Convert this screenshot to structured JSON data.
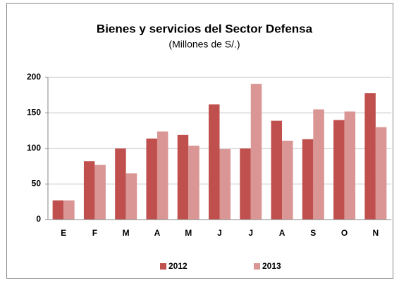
{
  "chart_data": {
    "type": "bar",
    "title": "Bienes y servicios del Sector Defensa",
    "subtitle": "(Millones de S/.)",
    "categories": [
      "E",
      "F",
      "M",
      "A",
      "M",
      "J",
      "J",
      "A",
      "S",
      "O",
      "N"
    ],
    "series": [
      {
        "name": "2012",
        "color": "#c0504d",
        "values": [
          27,
          82,
          100,
          114,
          119,
          162,
          100,
          139,
          113,
          140,
          178
        ]
      },
      {
        "name": "2013",
        "color": "#d99694",
        "values": [
          27,
          77,
          65,
          124,
          104,
          99,
          191,
          111,
          155,
          152,
          130
        ]
      }
    ],
    "ylim": [
      0,
      200
    ],
    "yticks": [
      0,
      50,
      100,
      150,
      200
    ],
    "grid": true,
    "legend": "bottom"
  }
}
